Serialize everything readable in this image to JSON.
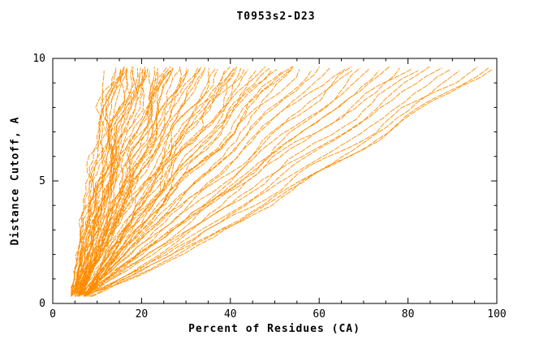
{
  "chart_data": {
    "type": "line",
    "title": "T0953s2-D23",
    "xlabel": "Percent of Residues (CA)",
    "ylabel": "Distance Cutoff, A",
    "xlim": [
      0,
      100
    ],
    "ylim": [
      0,
      10
    ],
    "x_major_ticks": [
      0,
      20,
      40,
      60,
      80,
      100
    ],
    "x_minor_step": 5,
    "y_major_ticks": [
      0,
      5,
      10
    ],
    "y_minor_step": 1,
    "grid": "off",
    "legend": "none",
    "background_color": "#FFFFFF",
    "axis_color": "#000000",
    "line_color": "#FF8C00",
    "curve_format": [
      "x_percent_at_bottom_cutoff",
      "x_percent_at_top_cutoff",
      "shape_exponent"
    ],
    "curves": [
      [
        4,
        12,
        1.0
      ],
      [
        4.5,
        13,
        1.1
      ],
      [
        5,
        14,
        0.95
      ],
      [
        4,
        15,
        1.05
      ],
      [
        5.5,
        15,
        1.2
      ],
      [
        4.2,
        16,
        1.0
      ],
      [
        5,
        17,
        1.15
      ],
      [
        6,
        17,
        0.9
      ],
      [
        4.5,
        18,
        1.05
      ],
      [
        5.2,
        18,
        1.2
      ],
      [
        6,
        19,
        1.0
      ],
      [
        4.8,
        20,
        1.1
      ],
      [
        5.5,
        20,
        0.95
      ],
      [
        6.2,
        21,
        1.15
      ],
      [
        5,
        22,
        1.0
      ],
      [
        5.8,
        22,
        1.2
      ],
      [
        6.5,
        23,
        0.9
      ],
      [
        5.2,
        24,
        1.05
      ],
      [
        6,
        24,
        1.15
      ],
      [
        6.8,
        25,
        1.0
      ],
      [
        5.5,
        26,
        1.1
      ],
      [
        6.3,
        26,
        0.95
      ],
      [
        7,
        27,
        1.2
      ],
      [
        5.8,
        28,
        1.0
      ],
      [
        6.5,
        28,
        1.1
      ],
      [
        7.2,
        29,
        0.95
      ],
      [
        6,
        30,
        1.15
      ],
      [
        6.8,
        30,
        1.0
      ],
      [
        4.3,
        13.5,
        1.15
      ],
      [
        4.7,
        14.5,
        1.0
      ],
      [
        5.1,
        15.5,
        1.1
      ],
      [
        5.4,
        16.5,
        0.95
      ],
      [
        5.7,
        17.5,
        1.05
      ],
      [
        6.1,
        18.5,
        1.1
      ],
      [
        4.9,
        19.5,
        1.0
      ],
      [
        5.3,
        21,
        1.1
      ],
      [
        5.9,
        23,
        1.05
      ],
      [
        6.4,
        25,
        0.95
      ],
      [
        6.9,
        27,
        1.1
      ],
      [
        6.2,
        29,
        1.0
      ],
      [
        5.6,
        31,
        1.05
      ],
      [
        6.6,
        34,
        1.1
      ],
      [
        7.1,
        37,
        0.95
      ],
      [
        7.4,
        42,
        1.05
      ],
      [
        7.7,
        48,
        1.0
      ],
      [
        8.1,
        53,
        1.1
      ],
      [
        6,
        32,
        1.05
      ],
      [
        7,
        33,
        1.1
      ],
      [
        5.5,
        34,
        0.95
      ],
      [
        6.5,
        35,
        1.2
      ],
      [
        7.5,
        36,
        1.0
      ],
      [
        6,
        37,
        1.1
      ],
      [
        7,
        38,
        0.9
      ],
      [
        8,
        39,
        1.15
      ],
      [
        6.5,
        40,
        1.0
      ],
      [
        7.5,
        41,
        1.1
      ],
      [
        5.8,
        42,
        1.25
      ],
      [
        6.8,
        43,
        0.95
      ],
      [
        7.8,
        44,
        1.05
      ],
      [
        6.2,
        45,
        1.15
      ],
      [
        7.2,
        46,
        1.0
      ],
      [
        8.2,
        47,
        1.1
      ],
      [
        6.5,
        48,
        0.9
      ],
      [
        7.5,
        50,
        1.2
      ],
      [
        6.8,
        52,
        1.0
      ],
      [
        7.8,
        54,
        1.1
      ],
      [
        7,
        55,
        0.95
      ],
      [
        8,
        56,
        1.15
      ],
      [
        7.2,
        58,
        1.0
      ],
      [
        8.2,
        60,
        1.05
      ],
      [
        6,
        62,
        0.95
      ],
      [
        7,
        64,
        1.05
      ],
      [
        8,
        66,
        0.9
      ],
      [
        6.5,
        68,
        1.0
      ],
      [
        7.5,
        70,
        0.85
      ],
      [
        8.5,
        72,
        1.1
      ],
      [
        7,
        74,
        0.95
      ],
      [
        8,
        76,
        1.0
      ],
      [
        6.8,
        78,
        0.9
      ],
      [
        7.8,
        80,
        1.05
      ],
      [
        8.8,
        82,
        0.95
      ],
      [
        7.2,
        85,
        0.85
      ],
      [
        8.2,
        88,
        1.0
      ],
      [
        7.5,
        90,
        0.9
      ],
      [
        8.5,
        92,
        0.8
      ],
      [
        9,
        95,
        0.95
      ],
      [
        8,
        97,
        0.85
      ],
      [
        9.2,
        98,
        0.9
      ]
    ]
  }
}
